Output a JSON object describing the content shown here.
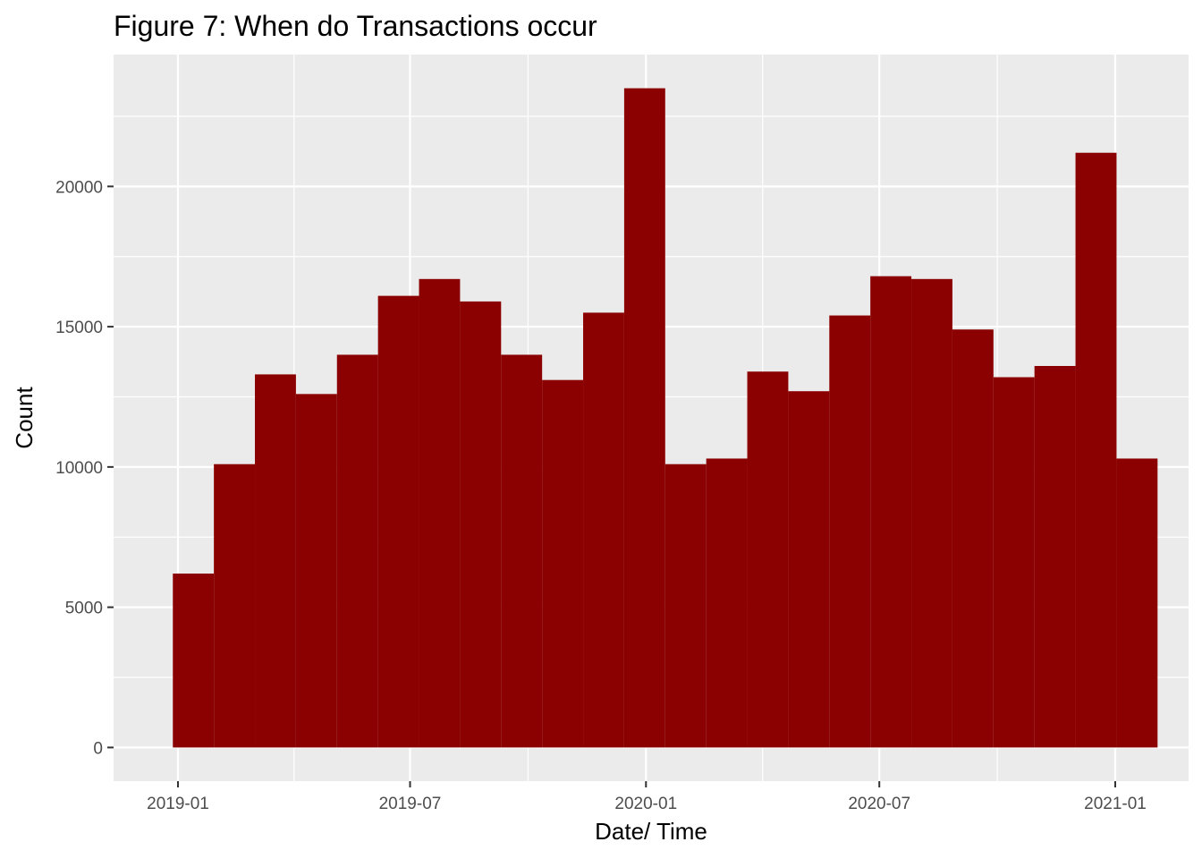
{
  "chart_data": {
    "type": "bar",
    "title": "Figure 7: When do Transactions occur",
    "xlabel": "Date/ Time",
    "ylabel": "Count",
    "x_ticks": [
      "2019-01",
      "2019-07",
      "2020-01",
      "2020-07",
      "2021-01"
    ],
    "y_ticks": [
      0,
      5000,
      10000,
      15000,
      20000
    ],
    "ylim": [
      -1200,
      24700
    ],
    "grid": true,
    "legend": "none",
    "colors": {
      "bar": "#8b0000",
      "panel": "#ebebeb",
      "grid": "#ffffff"
    },
    "bins": [
      {
        "start": "2018-12-28",
        "end": "2019-01-29",
        "value": 6200
      },
      {
        "start": "2019-01-29",
        "end": "2019-03-02",
        "value": 10100
      },
      {
        "start": "2019-03-02",
        "end": "2019-04-03",
        "value": 13300
      },
      {
        "start": "2019-04-03",
        "end": "2019-05-05",
        "value": 12600
      },
      {
        "start": "2019-05-05",
        "end": "2019-06-06",
        "value": 14000
      },
      {
        "start": "2019-06-06",
        "end": "2019-07-08",
        "value": 16100
      },
      {
        "start": "2019-07-08",
        "end": "2019-08-09",
        "value": 16700
      },
      {
        "start": "2019-08-09",
        "end": "2019-09-10",
        "value": 15900
      },
      {
        "start": "2019-09-10",
        "end": "2019-10-12",
        "value": 14000
      },
      {
        "start": "2019-10-12",
        "end": "2019-11-13",
        "value": 13100
      },
      {
        "start": "2019-11-13",
        "end": "2019-12-15",
        "value": 15500
      },
      {
        "start": "2019-12-15",
        "end": "2020-01-16",
        "value": 23500
      },
      {
        "start": "2020-01-16",
        "end": "2020-02-17",
        "value": 10100
      },
      {
        "start": "2020-02-17",
        "end": "2020-03-20",
        "value": 10300
      },
      {
        "start": "2020-03-20",
        "end": "2020-04-21",
        "value": 13400
      },
      {
        "start": "2020-04-21",
        "end": "2020-05-23",
        "value": 12700
      },
      {
        "start": "2020-05-23",
        "end": "2020-06-24",
        "value": 15400
      },
      {
        "start": "2020-06-24",
        "end": "2020-07-26",
        "value": 16800
      },
      {
        "start": "2020-07-26",
        "end": "2020-08-27",
        "value": 16700
      },
      {
        "start": "2020-08-27",
        "end": "2020-09-28",
        "value": 14900
      },
      {
        "start": "2020-09-28",
        "end": "2020-10-30",
        "value": 13200
      },
      {
        "start": "2020-10-30",
        "end": "2020-12-01",
        "value": 13600
      },
      {
        "start": "2020-12-01",
        "end": "2021-01-02",
        "value": 21200
      },
      {
        "start": "2021-01-02",
        "end": "2021-02-03",
        "value": 10300
      }
    ]
  }
}
